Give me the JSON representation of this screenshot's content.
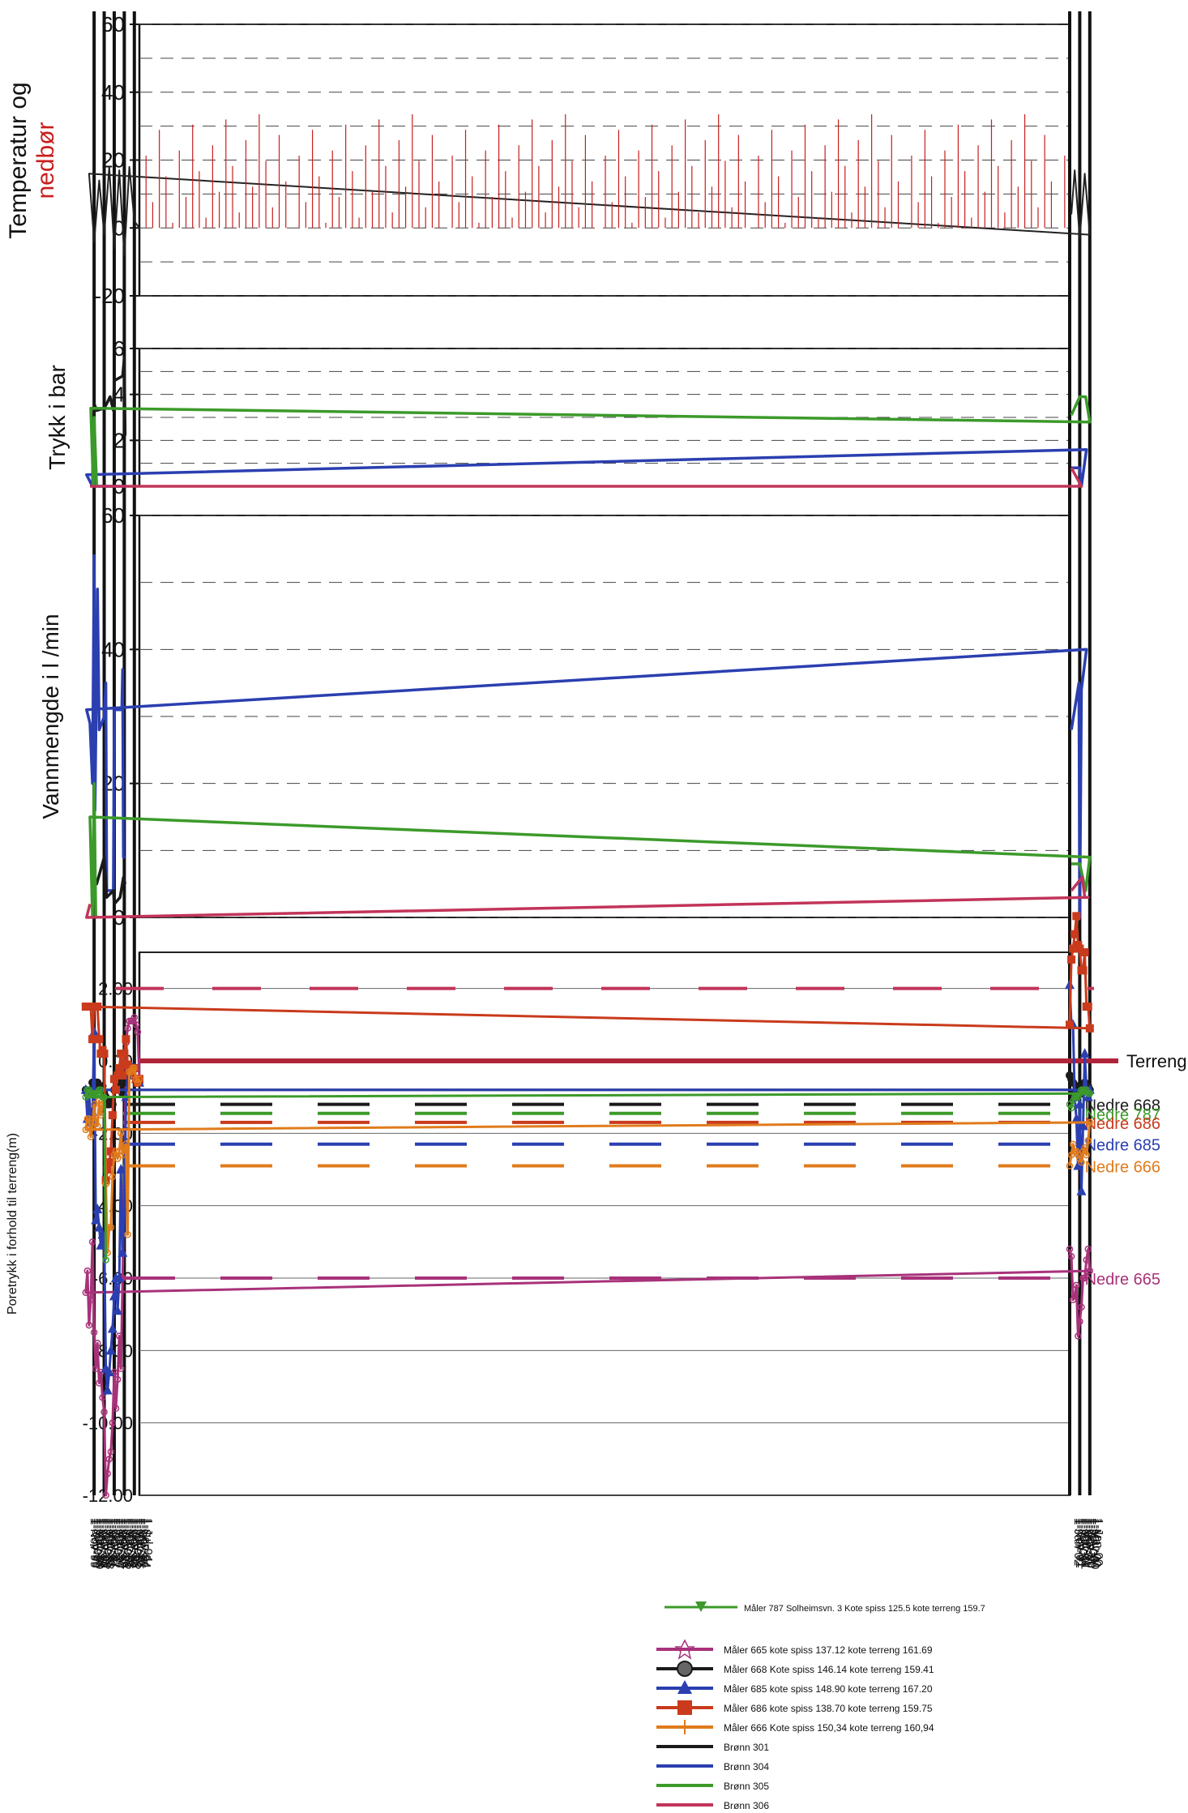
{
  "chart_data": [
    {
      "panel": "temperature",
      "type": "line",
      "ylabel_line1": "Temperatur og",
      "ylabel_line2": "nedbør",
      "ylim": [
        -20,
        60
      ],
      "yticks": [
        "60",
        "40",
        "20",
        "0",
        "-20"
      ],
      "grid": "dashed",
      "series": [
        {
          "label": "Temperatur",
          "color": "#222222",
          "x": [
            "1-Jul-94",
            "1-Jan-95",
            "1-Jul-95",
            "1-Jan-96",
            "1-Jul-96",
            "1-Jan-97",
            "1-Jul-97",
            "1-Jan-98",
            "1-Jul-98",
            "1-Jan-99",
            "1-Jul-99",
            "1-Jan-00",
            "1-Jul-00",
            "1-Jan-01",
            "1-Jul-01",
            "1-Nov-01"
          ],
          "y": [
            0,
            2,
            18,
            -8,
            17,
            -6,
            18,
            -2,
            14,
            -4,
            16,
            -2,
            16,
            -3,
            17,
            4
          ]
        },
        {
          "label": "Nedbør",
          "color": "#c81e1e",
          "x": [
            "1-Jul-94",
            "1-Nov-01"
          ],
          "y": [
            0,
            35
          ]
        }
      ]
    },
    {
      "panel": "pressure",
      "type": "line",
      "ylabel": "Trykk i bar",
      "ylim": [
        0,
        6
      ],
      "yticks": [
        "6",
        "4",
        "2",
        "0"
      ],
      "grid": "dashed",
      "series": [
        {
          "color": "#1a1a1a",
          "x": [
            "1-Dec-95",
            "1-Jan-96",
            "1-Mar-96",
            "1-Jan-97",
            "1-Feb-97",
            "1-Jun-97",
            "1-Oct-97",
            "1-Jan-98",
            "1-Oct-98",
            "1-Jan-99",
            "1-Mar-99"
          ],
          "y": [
            2.2,
            5.6,
            4.8,
            4.6,
            3.3,
            3.9,
            3.6,
            3.4,
            3.3,
            3.6,
            0
          ]
        },
        {
          "color": "#2b3fb0",
          "x": [
            "1-Dec-95",
            "1-Dec-98",
            "1-Jan-99",
            "1-Mar-99",
            "1-Oct-99",
            "1-May-00",
            "1-Nov-00",
            "1-Jan-01",
            "1-Nov-01"
          ],
          "y": [
            0,
            0,
            3,
            0,
            0.5,
            1.6,
            0,
            0.8,
            0.8
          ]
        },
        {
          "color": "#3c9a2a",
          "x": [
            "1-Oct-98",
            "1-Jan-99",
            "1-Feb-99",
            "1-May-99",
            "1-Jan-00",
            "1-Jun-00",
            "1-Jan-01",
            "1-Nov-01"
          ],
          "y": [
            0,
            3,
            0,
            3.4,
            2.8,
            3.9,
            3.9,
            3.1
          ]
        },
        {
          "color": "#c2345a",
          "x": [
            "1-Jun-99",
            "1-Nov-00",
            "1-Nov-01"
          ],
          "y": [
            0,
            0,
            0.8
          ]
        }
      ]
    },
    {
      "panel": "flow",
      "type": "line",
      "ylabel": "Vannmengde i l /min",
      "ylim": [
        0,
        60
      ],
      "yticks": [
        "60",
        "40",
        "20",
        "0"
      ],
      "grid": "dashed",
      "series": [
        {
          "color": "#2b3fb0",
          "x": [
            "1-Dec-95",
            "1-Feb-96",
            "1-Mar-96",
            "1-Apr-96",
            "1-Jan-97",
            "1-Feb-97",
            "1-Oct-97",
            "1-Nov-97",
            "1-Jan-98",
            "1-Jul-98",
            "1-Sep-98",
            "1-Dec-98",
            "1-Jan-99",
            "1-Mar-99",
            "1-Jun-99",
            "1-Oct-99",
            "1-May-00",
            "1-Nov-00",
            "1-Jan-01",
            "1-Feb-01",
            "1-Nov-01"
          ],
          "y": [
            9,
            9,
            37,
            31,
            31,
            4,
            4,
            35,
            30,
            28,
            49,
            16,
            54,
            20,
            29,
            31,
            40,
            34,
            0,
            35,
            28
          ]
        },
        {
          "color": "#1a1a1a",
          "x": [
            "1-Dec-95",
            "1-Feb-96",
            "1-Jun-96",
            "1-Jan-97",
            "1-Feb-97",
            "1-Oct-97",
            "1-Jan-98",
            "1-Oct-98",
            "1-Jan-99",
            "1-Mar-99"
          ],
          "y": [
            5,
            6,
            3,
            2,
            4,
            3,
            9,
            5,
            6,
            0
          ]
        },
        {
          "color": "#3c9a2a",
          "x": [
            "1-Nov-98",
            "1-Jan-99",
            "1-Mar-99",
            "1-Jun-99",
            "1-Jan-00",
            "1-Jun-00",
            "1-Jan-01",
            "1-Nov-01"
          ],
          "y": [
            0,
            20,
            0,
            15,
            9,
            4,
            8,
            8
          ]
        },
        {
          "color": "#c2345a",
          "x": [
            "1-Jun-99",
            "1-Oct-99",
            "1-Mar-00",
            "1-Jul-00",
            "1-Oct-00",
            "1-Nov-01"
          ],
          "y": [
            2,
            0,
            3,
            3,
            6,
            4
          ]
        }
      ]
    },
    {
      "panel": "pore_pressure",
      "type": "line",
      "ylabel": "Poretrykk i forhold til terreng(m)",
      "ylim": [
        -12,
        3
      ],
      "yticks": [
        "2.00",
        "0.00",
        "-2.00",
        "-4.00",
        "-6.00",
        "-8.00",
        "-10.00",
        "-12.00"
      ],
      "x": [
        "1-Jul-94",
        "1-Sep-94",
        "1-Nov-94",
        "1-Jan-95",
        "1-Mar-95",
        "1-May-95",
        "1-Jul-95",
        "1-Sep-95",
        "1-Nov-95",
        "1-Jan-96",
        "1-Mar-96",
        "1-May-96",
        "1-Jul-96",
        "1-Sep-96",
        "1-Nov-96",
        "1-Jan-97",
        "1-Mar-97",
        "1-May-97",
        "1-Jul-97",
        "1-Sep-97",
        "1-Nov-97",
        "1-Jan-98",
        "1-Mar-98",
        "1-May-98",
        "1-Jul-98",
        "1-Sep-98",
        "1-Nov-98",
        "1-Jan-99",
        "1-Mar-99",
        "1-May-99",
        "1-Jul-99",
        "1-Sep-99",
        "1-Nov-99",
        "1-Jan-00",
        "1-Mar-00",
        "1-May-00",
        "1-Jul-00",
        "1-Sep-00",
        "1-Nov-00",
        "1-Jan-01",
        "1-Mar-01",
        "1-May-01",
        "1-Jul-01",
        "1-Sep-01",
        "1-Nov-01",
        "1-Jan-02"
      ],
      "series": [
        {
          "name": "Måler 665 kote spiss 137.12 kote terreng 161.69",
          "color": "#a8327a",
          "y": [
            -0.5,
            0.8,
            1.0,
            1.2,
            1.1,
            1.1,
            1.1,
            0.9,
            0.5,
            -3.5,
            -6.0,
            -8.5,
            -7.6,
            -8.8,
            -9.6,
            -8.6,
            -10.0,
            -10.8,
            -11.0,
            -11.4,
            -12.0,
            -9.7,
            -9.3,
            -8.6,
            -8.9,
            -7.8,
            -8.5,
            -7.5,
            -5.0,
            -6.6,
            -7.3,
            -5.8,
            -6.4,
            -5.8,
            -5.2,
            -5.5,
            -6.0,
            -6.0,
            -6.8,
            -7.2,
            -7.6,
            -6.2,
            -6.5,
            -6.6,
            -5.4,
            -5.2
          ]
        },
        {
          "name": "Måler 668 Kote spiss 146.14 kote terreng 159.41",
          "color": "#1a1a1a",
          "y": [
            -0.6,
            -0.6,
            -0.5,
            -0.2,
            -0.2,
            -0.3,
            -0.3,
            -0.4,
            -0.6,
            -0.5,
            -0.9,
            -0.6,
            -0.7,
            -0.7,
            -0.8,
            -0.8,
            -1.2,
            -1.1,
            -1.2,
            -1.2,
            -1.0,
            -0.9,
            -0.7,
            -0.8,
            -0.7,
            -0.6,
            -0.6,
            -0.6,
            -0.6,
            -0.8,
            -0.9,
            -0.9,
            -0.8,
            -0.8,
            -0.7,
            -0.7,
            -0.6,
            -0.7,
            -0.9,
            -0.8,
            -0.7,
            -0.9,
            -0.9,
            -0.6,
            -0.5,
            -0.4
          ]
        },
        {
          "name": "Måler 685 kote spiss 148.90 kote terreng 167.20",
          "color": "#2b3fb0",
          "y": [
            -0.6,
            -0.6,
            -0.5,
            -0.2,
            -0.2,
            -0.3,
            -0.3,
            -0.4,
            -1.0,
            -4.2,
            -5.3,
            -3.0,
            -6.0,
            -6.9,
            -6.0,
            -6.5,
            -7.4,
            -8.0,
            -8.6,
            -9.1,
            -8.5,
            -5.0,
            -4.8,
            -5.1,
            -4.6,
            -4.1,
            -4.4,
            0.8,
            -1.4,
            -1.7,
            -0.9,
            -1.6,
            -0.8,
            -0.8,
            -1.0,
            -0.8,
            0.2,
            -1.8,
            -3.6,
            -1.2,
            -2.9,
            -1.6,
            -1.0,
            1.0,
            1.0,
            2.1
          ]
        },
        {
          "name": "Måler 686 kote spiss 138.70 kote terreng 159.75",
          "color": "#c93b1c",
          "y": [
            -0.5,
            -0.6,
            -0.5,
            -0.2,
            -0.2,
            -0.3,
            -0.3,
            -0.1,
            0.6,
            0.2,
            -0.4,
            0.2,
            -0.2,
            -0.4,
            -0.8,
            -0.5,
            -1.5,
            -2.5,
            -2.8,
            -3.0,
            -3.3,
            0.2,
            0.3,
            0.2,
            0.6,
            1.5,
            1.5,
            1.5,
            0.6,
            1.5,
            1.5,
            1.5,
            1.5,
            0.9,
            1.5,
            1.5,
            3.0,
            2.5,
            2.5,
            3.1,
            3.2,
            4.0,
            3.5,
            3.1,
            2.8,
            1.0
          ]
        },
        {
          "name": "Måler 666 Kote spiss 150,34 kote terreng 160,94",
          "color": "#e07b1c",
          "y": [
            -0.5,
            -0.6,
            -0.5,
            -0.2,
            -0.2,
            -0.3,
            -0.3,
            -4.8,
            -2.3,
            -2.4,
            -2.6,
            -2.0,
            -2.5,
            -2.7,
            -2.5,
            -2.6,
            -3.2,
            -4.6,
            -4.6,
            -5.3,
            -3.4,
            -1.0,
            -1.2,
            -1.5,
            -1.1,
            -1.8,
            -1.7,
            -1.2,
            -1.8,
            -2.1,
            -1.6,
            -1.6,
            -1.9,
            -1.7,
            -2.2,
            -2.6,
            -2.4,
            -2.5,
            -2.8,
            -2.7,
            -2.6,
            -2.5,
            -2.5,
            -2.3,
            -2.6,
            -2.9
          ]
        },
        {
          "name": "Måler 787 Solheimsvn. 3 Kote spiss 125.5 kote terreng 159.7",
          "color": "#3c9a2a",
          "y": [
            null,
            null,
            null,
            null,
            null,
            null,
            null,
            null,
            null,
            null,
            null,
            null,
            null,
            null,
            null,
            null,
            null,
            null,
            null,
            null,
            -5.5,
            -1.0,
            -1.0,
            -0.8,
            -0.8,
            -0.9,
            -0.9,
            -0.9,
            -0.9,
            -0.9,
            -0.8,
            -0.8,
            -1.0,
            -0.9,
            -0.9,
            -0.8,
            -0.8,
            -0.8,
            -0.8,
            -0.9,
            -1.0,
            -1.0,
            -1.0,
            -1.1,
            -1.3,
            -1.2
          ]
        }
      ],
      "reference_lines": [
        {
          "label": "Terreng",
          "value": 0.0,
          "color": "#b0243a"
        },
        {
          "label": "Nedre 668",
          "value": -1.2,
          "color": "#1a1a1a"
        },
        {
          "label": "Nedre 787",
          "value": -1.45,
          "color": "#3c9a2a"
        },
        {
          "label": "Nedre 686",
          "value": -1.7,
          "color": "#c93b1c"
        },
        {
          "label": "Nedre 685",
          "value": -2.3,
          "color": "#2b3fb0"
        },
        {
          "label": "Nedre 666",
          "value": -2.9,
          "color": "#e07b1c"
        },
        {
          "label": "Nedre 665",
          "value": -6.0,
          "color": "#a8327a"
        },
        {
          "label": "",
          "value": 2.0,
          "color": "#c2345a"
        }
      ]
    }
  ],
  "legend_top": {
    "name": "Måler 787 Solheimsvn. 3 Kote spiss 125.5 kote terreng 159.7",
    "color": "#3c9a2a"
  },
  "legend": [
    {
      "name": "Måler 665 kote spiss 137.12 kote terreng 161.69",
      "color": "#a8327a",
      "marker": "star"
    },
    {
      "name": "Måler 668 Kote spiss 146.14 kote terreng 159.41",
      "color": "#1a1a1a",
      "marker": "circle"
    },
    {
      "name": "Måler 685 kote spiss 148.90 kote terreng 167.20",
      "color": "#2b3fb0",
      "marker": "triangle"
    },
    {
      "name": "Måler 686 kote spiss 138.70 kote terreng 159.75",
      "color": "#c93b1c",
      "marker": "square"
    },
    {
      "name": "Måler 666   Kote spiss 150,34 kote terreng 160,94",
      "color": "#e07b1c",
      "marker": "plus"
    },
    {
      "name": "Brønn 301",
      "color": "#1a1a1a",
      "marker": "line"
    },
    {
      "name": "Brønn 304",
      "color": "#2b3fb0",
      "marker": "line"
    },
    {
      "name": "Brønn 305",
      "color": "#3c9a2a",
      "marker": "line"
    },
    {
      "name": "Brønn 306",
      "color": "#c2345a",
      "marker": "line"
    }
  ],
  "vertical_markers": [
    "1-Jan-95",
    "1-Jan-96",
    "1-Jan-97",
    "1-Jan-98",
    "1-Jan-99",
    "1-Jan-00",
    "1-Jan-01",
    "1-Jan-02"
  ],
  "x_tick_labels": [
    "1-Jul-94",
    "1-Sep-94",
    "1-Nov-94",
    "1-Jan-95",
    "1-Mar-95",
    "1-May-95",
    "1-Jul-95",
    "1-Sep-95",
    "1-Nov-95",
    "1-Jan-96",
    "1-Mar-96",
    "1-May-96",
    "1-Jul-96",
    "1-Sep-96",
    "1-Nov-96",
    "1-Jan-97",
    "1-Mar-97",
    "1-May-97",
    "1-Jul-97",
    "1-Sep-97",
    "1-Nov-97",
    "1-Jan-98",
    "1-Mar-98",
    "1-May-98",
    "1-Jul-98",
    "1-Sep-98",
    "1-Nov-98",
    "1-Jan-99",
    "1-Mar-99",
    "1-May-99",
    "1-Jul-99",
    "1-Sep-99",
    "1-Nov-99",
    "1-Jan-00",
    "1-Mar-00",
    "1-May-00",
    "1-Jul-00",
    "1-Sep-00",
    "1-Nov-00",
    "1-Jan-01",
    "1-Mar-01",
    "1-May-01",
    "1-Jul-01",
    "1-Sep-01",
    "1-Nov-01",
    "1-Jan-02"
  ]
}
